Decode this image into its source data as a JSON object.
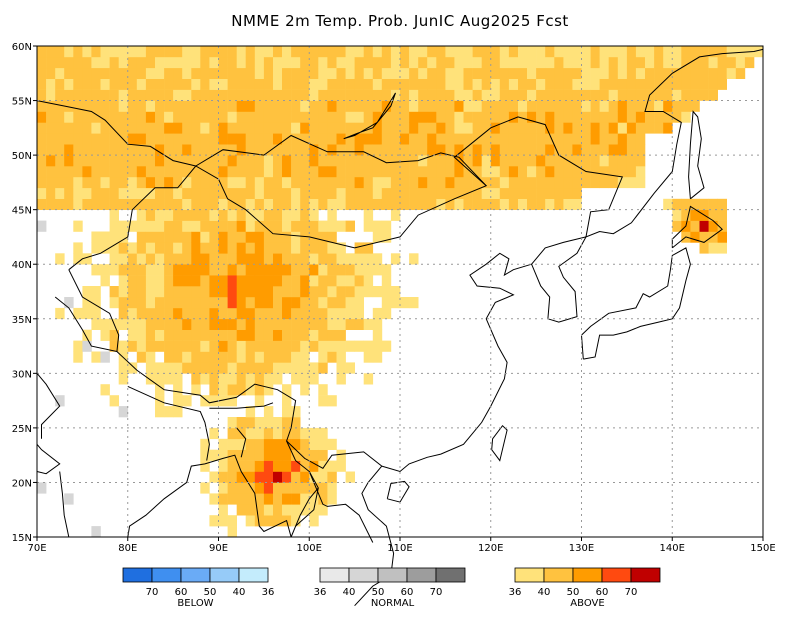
{
  "title": "NMME 2m Temp. Prob. JunIC  Aug2025 Fcst",
  "lat_labels": [
    "60N",
    "55N",
    "50N",
    "45N",
    "40N",
    "35N",
    "30N",
    "25N",
    "20N",
    "15N"
  ],
  "lon_labels": [
    "70E",
    "80E",
    "90E",
    "100E",
    "110E",
    "120E",
    "130E",
    "140E",
    "150E"
  ],
  "map_extent": {
    "lon": [
      70,
      150
    ],
    "lat": [
      15,
      60
    ]
  },
  "grid": true,
  "colors": {
    "below": [
      "#1f6fe0",
      "#3f8ff0",
      "#6aabf6",
      "#96cbf8",
      "#c4ecfc"
    ],
    "normal": [
      "#e9e9e9",
      "#d6d6d6",
      "#c0c0c0",
      "#9d9d9d",
      "#707070"
    ],
    "above": [
      "#ffe27a",
      "#ffc23f",
      "#ff9c00",
      "#ff4a10",
      "#c00000"
    ],
    "land_white": "#ffffff"
  },
  "legend": {
    "below": {
      "title": "BELOW",
      "numbers": [
        "70",
        "60",
        "50",
        "40",
        "36"
      ]
    },
    "normal": {
      "title": "NORMAL",
      "numbers": [
        "36",
        "40",
        "50",
        "60",
        "70"
      ]
    },
    "above": {
      "title": "ABOVE",
      "numbers": [
        "36",
        "40",
        "50",
        "60",
        "70"
      ]
    }
  }
}
